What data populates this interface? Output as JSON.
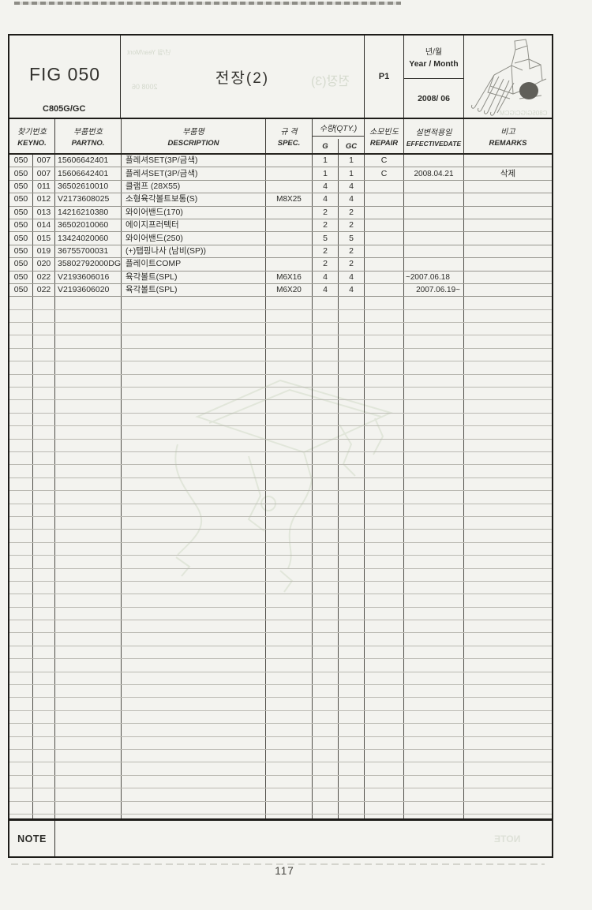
{
  "header": {
    "fig": "FIG 050",
    "model": "C805G/GC",
    "title": "전장(2)",
    "page_code": "P1",
    "year_month_ko": "년/월",
    "year_month_en": "Year / Month",
    "year_month_value": "2008/ 06",
    "machine_icon": "combine-harvester-illustration"
  },
  "table": {
    "headers": {
      "keyno_ko": "찾기번호",
      "keyno_en": "KEYNO.",
      "partno_ko": "부품번호",
      "partno_en": "PARTNO.",
      "desc_ko": "부품명",
      "desc_en": "DESCRIPTION",
      "spec_ko": "규 격",
      "spec_en": "SPEC.",
      "qty_ko": "수량(QTY.)",
      "qty_g": "G",
      "qty_gc": "GC",
      "repair_ko": "소모빈도",
      "repair_en": "REPAIR",
      "effective_ko": "설변적용일",
      "effective_en": "EFFECTIVEDATE",
      "remarks_ko": "비고",
      "remarks_en": "REMARKS"
    },
    "rows": [
      {
        "key1": "050",
        "key2": "007",
        "partno": "15606642401",
        "desc": "플레셔SET(3P/금색)",
        "spec": "",
        "g": "1",
        "gc": "1",
        "repair": "C",
        "effective": "",
        "remarks": ""
      },
      {
        "key1": "050",
        "key2": "007",
        "partno": "15606642401",
        "desc": "플레셔SET(3P/금색)",
        "spec": "",
        "g": "1",
        "gc": "1",
        "repair": "C",
        "effective": "2008.04.21",
        "remarks": "삭제"
      },
      {
        "key1": "050",
        "key2": "011",
        "partno": "36502610010",
        "desc": "클램프 (28X55)",
        "spec": "",
        "g": "4",
        "gc": "4",
        "repair": "",
        "effective": "",
        "remarks": ""
      },
      {
        "key1": "050",
        "key2": "012",
        "partno": "V2173608025",
        "desc": "소형육각볼트보통(S)",
        "spec": "M8X25",
        "g": "4",
        "gc": "4",
        "repair": "",
        "effective": "",
        "remarks": ""
      },
      {
        "key1": "050",
        "key2": "013",
        "partno": "14216210380",
        "desc": "와이어밴드(170)",
        "spec": "",
        "g": "2",
        "gc": "2",
        "repair": "",
        "effective": "",
        "remarks": ""
      },
      {
        "key1": "050",
        "key2": "014",
        "partno": "36502010060",
        "desc": "에이지프러텍터",
        "spec": "",
        "g": "2",
        "gc": "2",
        "repair": "",
        "effective": "",
        "remarks": ""
      },
      {
        "key1": "050",
        "key2": "015",
        "partno": "13424020060",
        "desc": "와이어밴드(250)",
        "spec": "",
        "g": "5",
        "gc": "5",
        "repair": "",
        "effective": "",
        "remarks": ""
      },
      {
        "key1": "050",
        "key2": "019",
        "partno": "36755700031",
        "desc": "(+)탭핑나사 (남비(SP))",
        "spec": "",
        "g": "2",
        "gc": "2",
        "repair": "",
        "effective": "",
        "remarks": ""
      },
      {
        "key1": "050",
        "key2": "020",
        "partno": "35802792000DG",
        "desc": "플레이트COMP",
        "spec": "",
        "g": "2",
        "gc": "2",
        "repair": "",
        "effective": "",
        "remarks": ""
      },
      {
        "key1": "050",
        "key2": "022",
        "partno": "V2193606016",
        "desc": "육각볼트(SPL)",
        "spec": "M6X16",
        "g": "4",
        "gc": "4",
        "repair": "",
        "effective": "~2007.06.18",
        "remarks": ""
      },
      {
        "key1": "050",
        "key2": "022",
        "partno": "V2193606020",
        "desc": "육각볼트(SPL)",
        "spec": "M6X20",
        "g": "4",
        "gc": "4",
        "repair": "",
        "effective": "2007.06.19~",
        "remarks": ""
      }
    ],
    "empty_row_count": 41
  },
  "note": {
    "label": "NOTE"
  },
  "page": {
    "number": "117"
  },
  "ghosts": {
    "title_mirror": "전장(3)",
    "ym_mirror": "년/월 Year/Mont",
    "date_mirror": "2008  06",
    "model_mirror": "C805G/GC/GCM",
    "note_mirror": "NOTE"
  },
  "colors": {
    "background": "#f3f3ef",
    "border_dark": "#1d1c19",
    "row_line": "#97968f",
    "empty_row_line": "#bab9b2",
    "text": "#2b2b28",
    "ghost_bleed": "#ccd2c4",
    "wheel_fill": "#605f59"
  }
}
